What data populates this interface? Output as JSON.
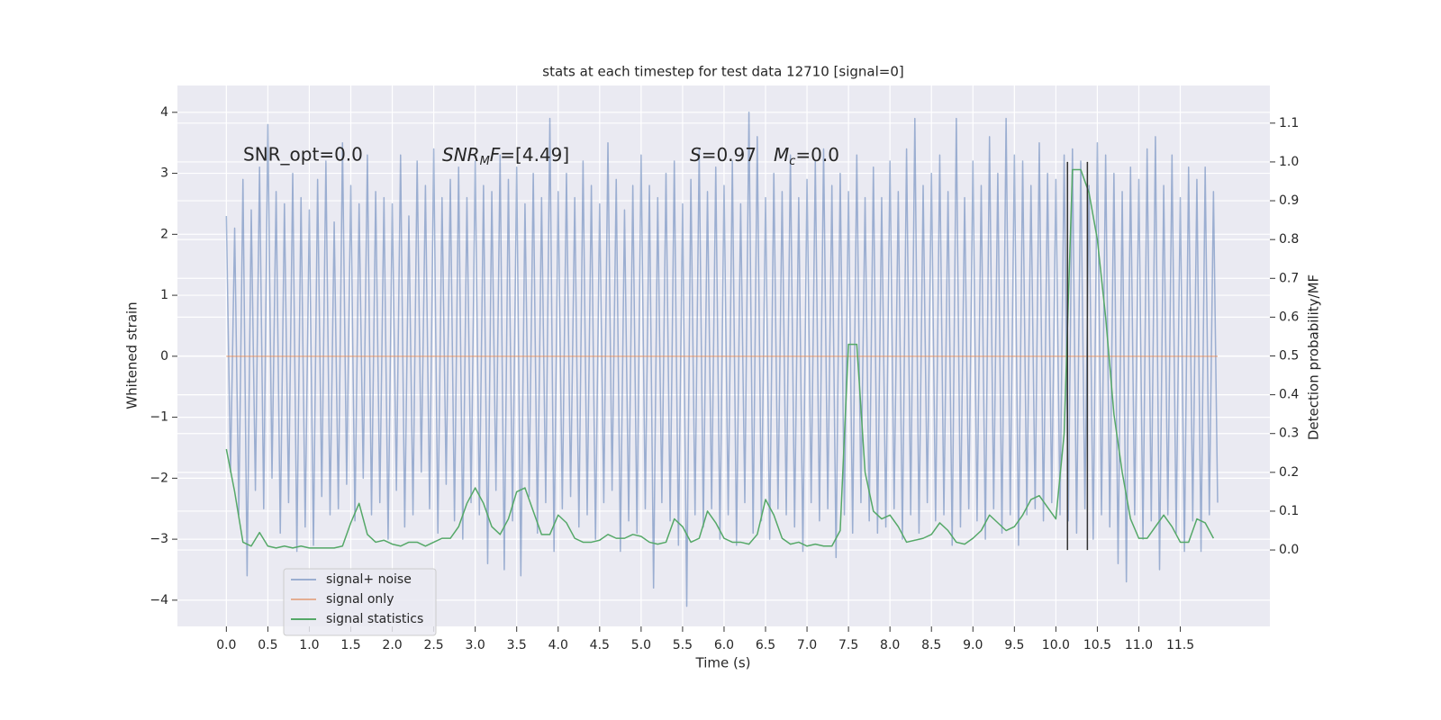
{
  "chart_data": {
    "type": "line",
    "title": "stats at each timestep for test data 12710 [signal=0]",
    "xlabel": "Time (s)",
    "ylabel": "Whitened strain",
    "y2label": "Detection probability/MF",
    "annotations": [
      "SNR_opt=0.0",
      [
        "SNR",
        "M",
        "F",
        "=[4.49]"
      ],
      [
        "S",
        "=0.97",
        "M",
        "c",
        "=0.0"
      ]
    ],
    "xlim": [
      -0.59,
      12.58
    ],
    "ylim": [
      -4.43,
      4.44
    ],
    "y2lim": [
      -0.197,
      1.197
    ],
    "xticks": [
      {
        "value": 0,
        "label": "0.0"
      },
      {
        "value": 0.5,
        "label": "0.5"
      },
      {
        "value": 1,
        "label": "1.0"
      },
      {
        "value": 1.5,
        "label": "1.5"
      },
      {
        "value": 2,
        "label": "2.0"
      },
      {
        "value": 2.5,
        "label": "2.5"
      },
      {
        "value": 3,
        "label": "3.0"
      },
      {
        "value": 3.5,
        "label": "3.5"
      },
      {
        "value": 4,
        "label": "4.0"
      },
      {
        "value": 4.5,
        "label": "4.5"
      },
      {
        "value": 5,
        "label": "5.0"
      },
      {
        "value": 5.5,
        "label": "5.5"
      },
      {
        "value": 6,
        "label": "6.0"
      },
      {
        "value": 6.5,
        "label": "6.5"
      },
      {
        "value": 7,
        "label": "7.0"
      },
      {
        "value": 7.5,
        "label": "7.5"
      },
      {
        "value": 8,
        "label": "8.0"
      },
      {
        "value": 8.5,
        "label": "8.5"
      },
      {
        "value": 9,
        "label": "9.0"
      },
      {
        "value": 9.5,
        "label": "9.5"
      },
      {
        "value": 10,
        "label": "10.0"
      },
      {
        "value": 10.5,
        "label": "10.5"
      },
      {
        "value": 11,
        "label": "11.0"
      },
      {
        "value": 11.5,
        "label": "11.5"
      }
    ],
    "yticks": [
      {
        "value": -4,
        "label": "−4"
      },
      {
        "value": -3,
        "label": "−3"
      },
      {
        "value": -2,
        "label": "−2"
      },
      {
        "value": -1,
        "label": "−1"
      },
      0,
      1,
      2,
      3,
      4
    ],
    "y2ticks": [
      {
        "value": 0,
        "label": "0.0"
      },
      {
        "value": 0.1,
        "label": "0.1"
      },
      {
        "value": 0.2,
        "label": "0.2"
      },
      {
        "value": 0.3,
        "label": "0.3"
      },
      {
        "value": 0.4,
        "label": "0.4"
      },
      {
        "value": 0.5,
        "label": "0.5"
      },
      {
        "value": 0.6,
        "label": "0.6"
      },
      {
        "value": 0.7,
        "label": "0.7"
      },
      {
        "value": 0.8,
        "label": "0.8"
      },
      {
        "value": 0.9,
        "label": "0.9"
      },
      {
        "value": 1,
        "label": "1.0"
      },
      {
        "value": 1.1,
        "label": "1.1"
      }
    ],
    "grid": true,
    "legend": "lower left",
    "vlines": {
      "x": [
        10.14,
        10.38
      ],
      "ymin": 0,
      "ymax": 1,
      "color": "#333333",
      "axis": "y2"
    },
    "series": [
      {
        "name": "signal+ noise",
        "color": "#4c72b0",
        "opacity": 0.5,
        "x": [
          0,
          0.05,
          0.1,
          0.15,
          0.2,
          0.25,
          0.3,
          0.35,
          0.4,
          0.45,
          0.5,
          0.55,
          0.6,
          0.65,
          0.7,
          0.75,
          0.8,
          0.85,
          0.9,
          0.95,
          1,
          1.05,
          1.1,
          1.15,
          1.2,
          1.25,
          1.3,
          1.35,
          1.4,
          1.45,
          1.5,
          1.55,
          1.6,
          1.65,
          1.7,
          1.75,
          1.8,
          1.85,
          1.9,
          1.95,
          2,
          2.05,
          2.1,
          2.15,
          2.2,
          2.25,
          2.3,
          2.35,
          2.4,
          2.45,
          2.5,
          2.55,
          2.6,
          2.65,
          2.7,
          2.75,
          2.8,
          2.85,
          2.9,
          2.95,
          3,
          3.05,
          3.1,
          3.15,
          3.2,
          3.25,
          3.3,
          3.35,
          3.4,
          3.45,
          3.5,
          3.55,
          3.6,
          3.65,
          3.7,
          3.75,
          3.8,
          3.85,
          3.9,
          3.95,
          4,
          4.05,
          4.1,
          4.15,
          4.2,
          4.25,
          4.3,
          4.35,
          4.4,
          4.45,
          4.5,
          4.55,
          4.6,
          4.65,
          4.7,
          4.75,
          4.8,
          4.85,
          4.9,
          4.95,
          5,
          5.05,
          5.1,
          5.15,
          5.2,
          5.25,
          5.3,
          5.35,
          5.4,
          5.45,
          5.5,
          5.55,
          5.6,
          5.65,
          5.7,
          5.75,
          5.8,
          5.85,
          5.9,
          5.95,
          6,
          6.05,
          6.1,
          6.15,
          6.2,
          6.25,
          6.3,
          6.35,
          6.4,
          6.45,
          6.5,
          6.55,
          6.6,
          6.65,
          6.7,
          6.75,
          6.8,
          6.85,
          6.9,
          6.95,
          7,
          7.05,
          7.1,
          7.15,
          7.2,
          7.25,
          7.3,
          7.35,
          7.4,
          7.45,
          7.5,
          7.55,
          7.6,
          7.65,
          7.7,
          7.75,
          7.8,
          7.85,
          7.9,
          7.95,
          8,
          8.05,
          8.1,
          8.15,
          8.2,
          8.25,
          8.3,
          8.35,
          8.4,
          8.45,
          8.5,
          8.55,
          8.6,
          8.65,
          8.7,
          8.75,
          8.8,
          8.85,
          8.9,
          8.95,
          9,
          9.05,
          9.1,
          9.15,
          9.2,
          9.25,
          9.3,
          9.35,
          9.4,
          9.45,
          9.5,
          9.55,
          9.6,
          9.65,
          9.7,
          9.75,
          9.8,
          9.85,
          9.9,
          9.95,
          10,
          10.05,
          10.1,
          10.15,
          10.2,
          10.25,
          10.3,
          10.35,
          10.4,
          10.45,
          10.5,
          10.55,
          10.6,
          10.65,
          10.7,
          10.75,
          10.8,
          10.85,
          10.9,
          10.95,
          11,
          11.05,
          11.1,
          11.15,
          11.2,
          11.25,
          11.3,
          11.35,
          11.4,
          11.45,
          11.5,
          11.55,
          11.6,
          11.65,
          11.7,
          11.75,
          11.8,
          11.85,
          11.9,
          11.95
        ],
        "values": [
          2.3,
          -1.9,
          2.1,
          -2.6,
          2.9,
          -3.6,
          2.4,
          -2.2,
          3.1,
          -2.5,
          3.8,
          -2.0,
          2.7,
          -2.9,
          2.5,
          -2.4,
          3.0,
          -3.2,
          2.6,
          -2.8,
          2.4,
          -3.1,
          2.9,
          -2.3,
          3.2,
          -2.6,
          2.2,
          -2.5,
          3.5,
          -2.1,
          2.8,
          -2.7,
          2.5,
          -2.0,
          3.3,
          -2.6,
          2.7,
          -2.4,
          2.6,
          -3.0,
          2.5,
          -2.2,
          3.3,
          -2.8,
          2.3,
          -2.6,
          3.2,
          -1.9,
          2.8,
          -2.5,
          3.4,
          -2.9,
          2.6,
          -2.1,
          2.9,
          -2.7,
          3.1,
          -3.0,
          2.6,
          -2.4,
          3.2,
          -2.6,
          2.8,
          -3.4,
          2.7,
          -2.2,
          3.3,
          -3.5,
          2.9,
          -2.7,
          3.1,
          -3.6,
          2.5,
          -2.3,
          3.0,
          -2.9,
          2.6,
          -2.4,
          3.9,
          -3.2,
          2.7,
          -2.5,
          3.0,
          -2.3,
          2.6,
          -2.8,
          3.2,
          -2.6,
          2.8,
          -3.0,
          2.5,
          -2.4,
          3.5,
          -2.2,
          2.9,
          -3.2,
          2.4,
          -2.7,
          2.8,
          -2.9,
          3.3,
          -2.5,
          2.8,
          -3.8,
          2.6,
          -2.4,
          3.0,
          -2.7,
          3.2,
          -3.1,
          2.5,
          -4.1,
          2.9,
          -2.6,
          3.4,
          -2.8,
          2.7,
          -2.5,
          3.1,
          -3.0,
          2.8,
          -2.6,
          3.2,
          -3.1,
          2.5,
          -2.4,
          4.0,
          -2.9,
          3.6,
          -2.7,
          2.6,
          -3.0,
          3.0,
          -2.5,
          2.7,
          -2.6,
          3.3,
          -2.8,
          2.6,
          -3.2,
          2.9,
          -2.4,
          3.2,
          -2.7,
          3.4,
          -2.5,
          2.8,
          -3.3,
          3.0,
          -2.6,
          2.7,
          -2.9,
          3.3,
          -2.4,
          2.6,
          -2.7,
          3.1,
          -2.9,
          2.6,
          -2.8,
          3.2,
          -2.5,
          2.7,
          -3.0,
          3.4,
          -2.6,
          3.9,
          -2.9,
          2.8,
          -2.4,
          3.0,
          -2.7,
          3.3,
          -2.6,
          2.7,
          -3.1,
          3.9,
          -2.8,
          2.6,
          -2.5,
          3.2,
          -2.7,
          2.8,
          -3.0,
          3.6,
          -2.5,
          3.0,
          -2.9,
          3.9,
          -2.6,
          3.3,
          -3.1,
          3.2,
          -2.6,
          2.8,
          -2.5,
          3.5,
          -2.7,
          3.0,
          -2.4,
          2.9,
          -2.6,
          3.3,
          -2.7,
          3.4,
          -2.9,
          3.2,
          -2.5,
          2.8,
          -3.0,
          3.5,
          -2.6,
          3.3,
          -2.8,
          3.0,
          -3.4,
          2.7,
          -3.7,
          3.1,
          -2.6,
          2.9,
          -3.0,
          3.4,
          -2.7,
          3.6,
          -3.5,
          2.8,
          -2.6,
          3.3,
          -2.9,
          2.6,
          -3.2,
          3.1,
          -2.7,
          2.9,
          -3.2,
          3.1,
          -2.6,
          2.7,
          -2.4
        ]
      },
      {
        "name": "signal only",
        "color": "#dd8452",
        "opacity": 0.6,
        "x": [
          0,
          11.95
        ],
        "values": [
          0,
          0
        ]
      },
      {
        "name": "signal statistics",
        "color": "#55a868",
        "opacity": 1,
        "axis": "y2",
        "x": [
          0,
          0.1,
          0.2,
          0.3,
          0.4,
          0.5,
          0.6,
          0.7,
          0.8,
          0.9,
          1,
          1.1,
          1.2,
          1.3,
          1.4,
          1.5,
          1.6,
          1.7,
          1.8,
          1.9,
          2,
          2.1,
          2.2,
          2.3,
          2.4,
          2.5,
          2.6,
          2.7,
          2.8,
          2.9,
          3,
          3.1,
          3.2,
          3.3,
          3.4,
          3.5,
          3.6,
          3.7,
          3.8,
          3.9,
          4,
          4.1,
          4.2,
          4.3,
          4.4,
          4.5,
          4.6,
          4.7,
          4.8,
          4.9,
          5,
          5.1,
          5.2,
          5.3,
          5.4,
          5.5,
          5.6,
          5.7,
          5.8,
          5.9,
          6,
          6.1,
          6.2,
          6.3,
          6.4,
          6.5,
          6.6,
          6.7,
          6.8,
          6.9,
          7,
          7.1,
          7.2,
          7.3,
          7.4,
          7.5,
          7.6,
          7.7,
          7.8,
          7.9,
          8,
          8.1,
          8.2,
          8.3,
          8.4,
          8.5,
          8.6,
          8.7,
          8.8,
          8.9,
          9,
          9.1,
          9.2,
          9.3,
          9.4,
          9.5,
          9.6,
          9.7,
          9.8,
          9.9,
          10,
          10.1,
          10.2,
          10.3,
          10.4,
          10.5,
          10.6,
          10.7,
          10.8,
          10.9,
          11,
          11.1,
          11.2,
          11.3,
          11.4,
          11.5,
          11.6,
          11.7,
          11.8,
          11.9
        ],
        "values": [
          0.26,
          0.15,
          0.02,
          0.01,
          0.045,
          0.01,
          0.005,
          0.01,
          0.005,
          0.01,
          0.005,
          0.005,
          0.005,
          0.005,
          0.01,
          0.07,
          0.12,
          0.04,
          0.02,
          0.025,
          0.015,
          0.01,
          0.02,
          0.02,
          0.01,
          0.02,
          0.03,
          0.03,
          0.06,
          0.12,
          0.16,
          0.12,
          0.06,
          0.04,
          0.08,
          0.15,
          0.16,
          0.1,
          0.04,
          0.04,
          0.09,
          0.07,
          0.03,
          0.02,
          0.02,
          0.025,
          0.04,
          0.03,
          0.03,
          0.04,
          0.035,
          0.02,
          0.015,
          0.02,
          0.08,
          0.06,
          0.02,
          0.03,
          0.1,
          0.07,
          0.03,
          0.02,
          0.02,
          0.015,
          0.04,
          0.13,
          0.09,
          0.03,
          0.015,
          0.02,
          0.01,
          0.015,
          0.01,
          0.01,
          0.05,
          0.53,
          0.53,
          0.2,
          0.1,
          0.08,
          0.09,
          0.06,
          0.02,
          0.025,
          0.03,
          0.04,
          0.07,
          0.05,
          0.02,
          0.015,
          0.03,
          0.05,
          0.09,
          0.07,
          0.05,
          0.06,
          0.09,
          0.13,
          0.14,
          0.11,
          0.08,
          0.3,
          0.98,
          0.98,
          0.92,
          0.8,
          0.6,
          0.35,
          0.2,
          0.08,
          0.03,
          0.03,
          0.06,
          0.09,
          0.06,
          0.02,
          0.02,
          0.08,
          0.07,
          0.03
        ]
      }
    ]
  }
}
